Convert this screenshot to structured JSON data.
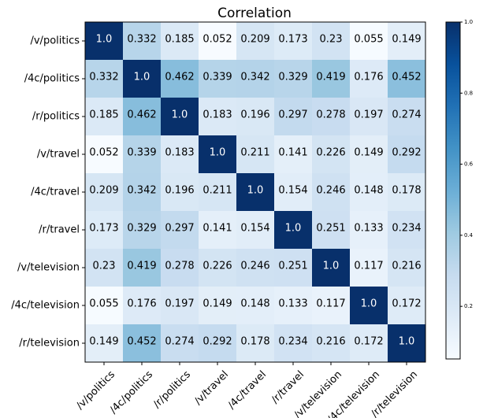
{
  "chart_data": {
    "type": "heatmap",
    "title": "Correlation",
    "row_labels": [
      "/v/politics",
      "/4c/politics",
      "/r/politics",
      "/v/travel",
      "/4c/travel",
      "/r/travel",
      "/v/television",
      "/4c/television",
      "/r/television"
    ],
    "col_labels": [
      "/v/politics",
      "/4c/politics",
      "/r/politics",
      "/v/travel",
      "/4c/travel",
      "/r/travel",
      "/v/television",
      "/4c/television",
      "/r/television"
    ],
    "matrix": [
      [
        "1.0",
        "0.332",
        "0.185",
        "0.052",
        "0.209",
        "0.173",
        "0.23",
        "0.055",
        "0.149"
      ],
      [
        "0.332",
        "1.0",
        "0.462",
        "0.339",
        "0.342",
        "0.329",
        "0.419",
        "0.176",
        "0.452"
      ],
      [
        "0.185",
        "0.462",
        "1.0",
        "0.183",
        "0.196",
        "0.297",
        "0.278",
        "0.197",
        "0.274"
      ],
      [
        "0.052",
        "0.339",
        "0.183",
        "1.0",
        "0.211",
        "0.141",
        "0.226",
        "0.149",
        "0.292"
      ],
      [
        "0.209",
        "0.342",
        "0.196",
        "0.211",
        "1.0",
        "0.154",
        "0.246",
        "0.148",
        "0.178"
      ],
      [
        "0.173",
        "0.329",
        "0.297",
        "0.141",
        "0.154",
        "1.0",
        "0.251",
        "0.133",
        "0.234"
      ],
      [
        "0.23",
        "0.419",
        "0.278",
        "0.226",
        "0.246",
        "0.251",
        "1.0",
        "0.117",
        "0.216"
      ],
      [
        "0.055",
        "0.176",
        "0.197",
        "0.149",
        "0.148",
        "0.133",
        "0.117",
        "1.0",
        "0.172"
      ],
      [
        "0.149",
        "0.452",
        "0.274",
        "0.292",
        "0.178",
        "0.234",
        "0.216",
        "0.172",
        "1.0"
      ]
    ],
    "colormap": "Blues",
    "colorbar_range": [
      0.052,
      1.0
    ],
    "colorbar_ticks": [
      "0.2",
      "0.4",
      "0.6",
      "0.8",
      "1.0"
    ],
    "grid": false
  }
}
